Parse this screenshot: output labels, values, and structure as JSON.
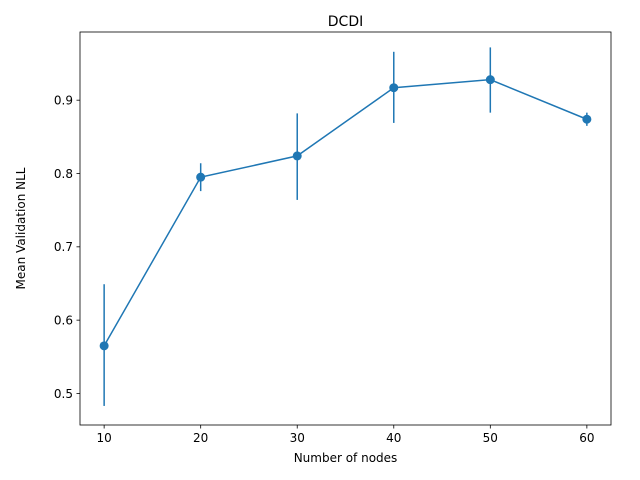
{
  "chart_data": {
    "type": "line",
    "title": "DCDI",
    "xlabel": "Number of nodes",
    "ylabel": "Mean Validation NLL",
    "x": [
      10,
      20,
      30,
      40,
      50,
      60
    ],
    "series": [
      {
        "values": [
          0.565,
          0.795,
          0.824,
          0.917,
          0.928,
          0.874
        ],
        "error_low": [
          0.483,
          0.776,
          0.764,
          0.869,
          0.883,
          0.865
        ],
        "error_high": [
          0.649,
          0.814,
          0.882,
          0.966,
          0.972,
          0.883
        ],
        "color": "#1f77b4",
        "marker": "circle"
      }
    ],
    "xlim": [
      7.5,
      62.5
    ],
    "ylim": [
      0.457,
      0.993
    ],
    "xticks": [
      "10",
      "20",
      "30",
      "40",
      "50",
      "60"
    ],
    "yticks": [
      "0.5",
      "0.6",
      "0.7",
      "0.8",
      "0.9"
    ],
    "grid": false,
    "legend": false
  }
}
